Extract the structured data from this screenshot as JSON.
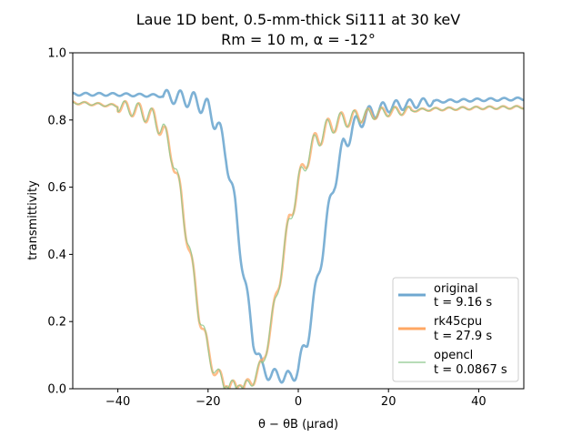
{
  "chart_data": {
    "type": "line",
    "title_line1": "Laue 1D bent, 0.5-mm-thick Si111 at 30 keV",
    "title_line2": "Rm = 10 m, α = -12°",
    "xlabel": "θ − θB (μrad)",
    "ylabel": "transmittivity",
    "xlim": [
      -50,
      50
    ],
    "ylim": [
      0,
      1.0
    ],
    "xticks": [
      -40,
      -20,
      0,
      20,
      40
    ],
    "xtick_labels": [
      "−40",
      "−20",
      "0",
      "20",
      "40"
    ],
    "yticks": [
      0.0,
      0.2,
      0.4,
      0.6,
      0.8,
      1.0
    ],
    "ytick_labels": [
      "0.0",
      "0.2",
      "0.4",
      "0.6",
      "0.8",
      "1.0"
    ],
    "grid": false,
    "legend_position": "lower-right",
    "series": [
      {
        "name": "original",
        "time_label": "t = 9.16 s",
        "color": "#6fa8d0",
        "x": [
          -50,
          -40,
          -30,
          -25,
          -22,
          -20,
          -18,
          -16,
          -14,
          -12,
          -10,
          -8,
          -6,
          -4,
          -2,
          0,
          2,
          4,
          6,
          8,
          10,
          12,
          15,
          20,
          30,
          40,
          50
        ],
        "y": [
          0.877,
          0.876,
          0.872,
          0.864,
          0.852,
          0.832,
          0.79,
          0.7,
          0.54,
          0.33,
          0.15,
          0.06,
          0.04,
          0.04,
          0.03,
          0.06,
          0.15,
          0.3,
          0.47,
          0.62,
          0.72,
          0.775,
          0.815,
          0.84,
          0.855,
          0.86,
          0.863
        ]
      },
      {
        "name": "rk45cpu",
        "time_label": "t = 27.9 s",
        "color": "#ffa763",
        "x": [
          -50,
          -40,
          -35,
          -32,
          -30,
          -28,
          -26,
          -24,
          -22,
          -20,
          -18,
          -16,
          -14,
          -12,
          -10,
          -8,
          -6,
          -4,
          -2,
          0,
          2,
          4,
          6,
          8,
          10,
          15,
          20,
          30,
          40,
          50
        ],
        "y": [
          0.852,
          0.842,
          0.826,
          0.805,
          0.77,
          0.7,
          0.57,
          0.4,
          0.23,
          0.11,
          0.04,
          0.01,
          0.003,
          0.0,
          0.03,
          0.07,
          0.19,
          0.34,
          0.5,
          0.61,
          0.69,
          0.74,
          0.77,
          0.79,
          0.8,
          0.815,
          0.825,
          0.832,
          0.836,
          0.838
        ]
      },
      {
        "name": "opencl",
        "time_label": "t = 0.0867 s",
        "color": "#8cc88c",
        "x": [
          -50,
          -40,
          -35,
          -32,
          -30,
          -28,
          -26,
          -24,
          -22,
          -20,
          -18,
          -16,
          -14,
          -12,
          -10,
          -8,
          -6,
          -4,
          -2,
          0,
          2,
          4,
          6,
          8,
          10,
          15,
          20,
          30,
          40,
          50
        ],
        "y": [
          0.852,
          0.842,
          0.826,
          0.805,
          0.77,
          0.7,
          0.57,
          0.4,
          0.23,
          0.11,
          0.04,
          0.01,
          0.003,
          0.0,
          0.03,
          0.07,
          0.19,
          0.34,
          0.5,
          0.61,
          0.69,
          0.74,
          0.77,
          0.79,
          0.8,
          0.815,
          0.825,
          0.832,
          0.836,
          0.838
        ]
      }
    ]
  }
}
